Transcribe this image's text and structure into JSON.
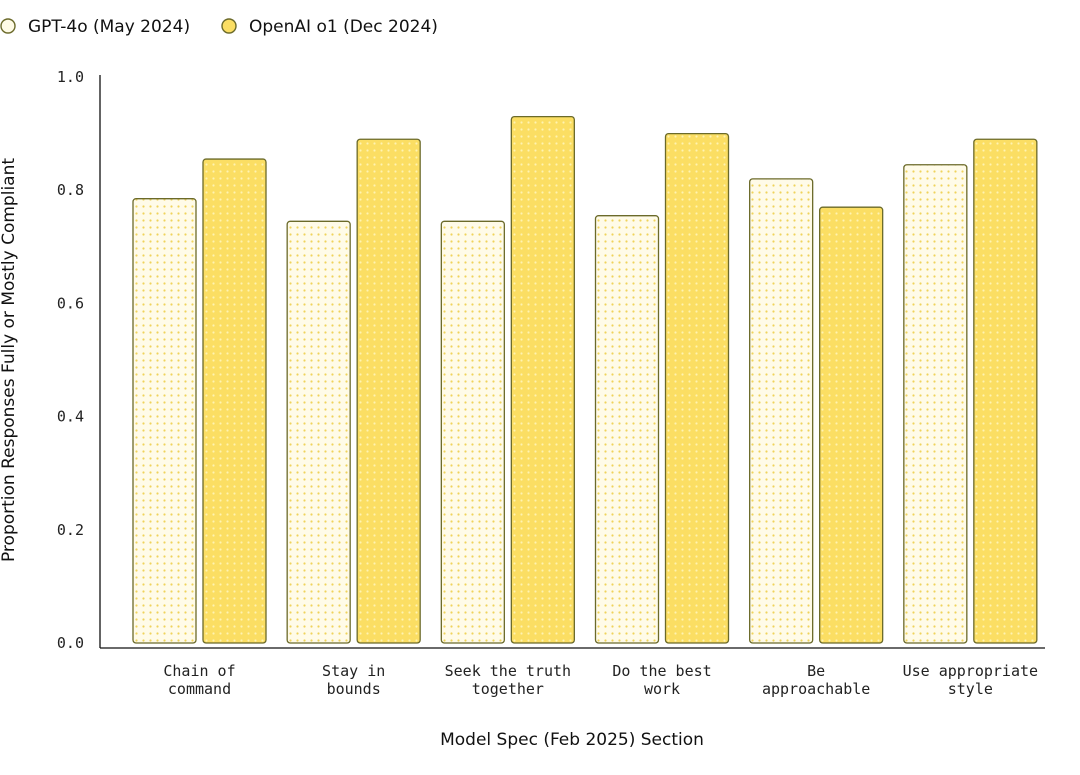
{
  "chart_data": {
    "type": "bar",
    "title": "",
    "xlabel": "Model Spec (Feb 2025) Section",
    "ylabel": "Proportion Responses Fully or Mostly Compliant",
    "ylim": [
      0,
      1.0
    ],
    "yticks": [
      "0.0",
      "0.2",
      "0.4",
      "0.6",
      "0.8",
      "1.0"
    ],
    "categories": [
      [
        "Chain of",
        "command"
      ],
      [
        "Stay in",
        "bounds"
      ],
      [
        "Seek the truth",
        "together"
      ],
      [
        "Do the best",
        "work"
      ],
      [
        "Be",
        "approachable"
      ],
      [
        "Use appropriate",
        "style"
      ]
    ],
    "series": [
      {
        "name": "GPT-4o (May 2024)",
        "values": [
          0.785,
          0.745,
          0.745,
          0.755,
          0.82,
          0.845
        ],
        "fill": "#fffbe6",
        "stroke": "#6b6a2a",
        "pattern": "dots"
      },
      {
        "name": "OpenAI o1 (Dec 2024)",
        "values": [
          0.855,
          0.89,
          0.93,
          0.9,
          0.77,
          0.89
        ],
        "fill": "#fbde63",
        "stroke": "#6b6a2a",
        "pattern": "dots"
      }
    ],
    "legend_position": "top-left",
    "grid": false
  }
}
